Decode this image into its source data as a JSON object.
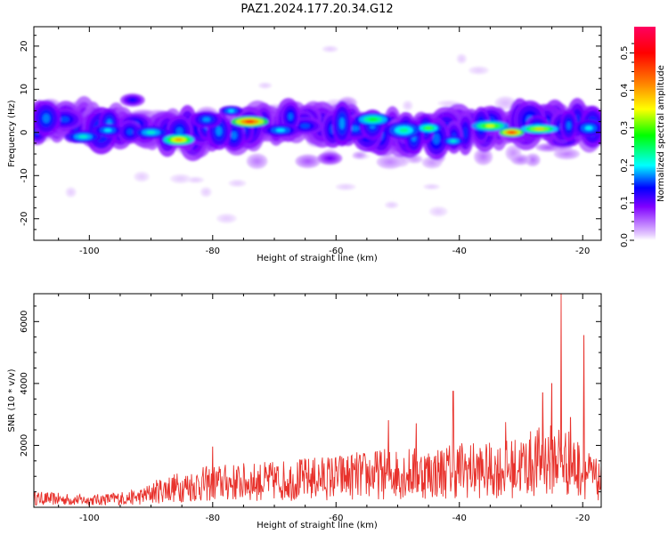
{
  "title": "PAZ1.2024.177.20.34.G12",
  "colors": {
    "axis": "#000000",
    "snr_line": "#e8322c"
  },
  "chart_data": [
    {
      "type": "heatmap",
      "xlabel": "Height of straight line (km)",
      "ylabel": "Frequency (Hz)",
      "xlim": [
        -109,
        -17
      ],
      "ylim": [
        -25,
        24.5
      ],
      "x_ticks": [
        -100,
        -80,
        -60,
        -40,
        -20
      ],
      "x_tick_labels": [
        "-100",
        "-80",
        "-60",
        "-40",
        "-20"
      ],
      "y_ticks": [
        -20,
        -10,
        0,
        10,
        20
      ],
      "y_tick_labels": [
        "-20",
        "-10",
        "0",
        "10",
        "20"
      ],
      "colorbar": {
        "label": "Normalized spectral amplitude",
        "range": [
          0.0,
          0.57
        ],
        "ticks": [
          0.0,
          0.1,
          0.2,
          0.3,
          0.4,
          0.5
        ],
        "tick_labels": [
          "0.0",
          "0.1",
          "0.2",
          "0.3",
          "0.4",
          "0.5"
        ],
        "colormap": [
          "#ffffff",
          "#e6ccff",
          "#8000ff",
          "#0000ff",
          "#00ffff",
          "#00ff00",
          "#ffff00",
          "#ff8000",
          "#ff0000",
          "#ff0060"
        ]
      },
      "blobs": [
        {
          "x": -104,
          "y": 3,
          "w": 3,
          "h": 2.5,
          "v": 0.16
        },
        {
          "x": -101,
          "y": -1,
          "w": 3,
          "h": 1.5,
          "v": 0.22
        },
        {
          "x": -97,
          "y": 0.5,
          "w": 2.5,
          "h": 1.5,
          "v": 0.2
        },
        {
          "x": -93,
          "y": 7.5,
          "w": 2,
          "h": 1.5,
          "v": 0.14
        },
        {
          "x": -90,
          "y": 0,
          "w": 3,
          "h": 1.5,
          "v": 0.22
        },
        {
          "x": -85.5,
          "y": -1.7,
          "w": 2.5,
          "h": 1.2,
          "v": 0.42
        },
        {
          "x": -81,
          "y": 3,
          "w": 2.5,
          "h": 2,
          "v": 0.18
        },
        {
          "x": -77,
          "y": 5,
          "w": 2,
          "h": 1.2,
          "v": 0.2
        },
        {
          "x": -74,
          "y": 2.5,
          "w": 3,
          "h": 1.2,
          "v": 0.5
        },
        {
          "x": -69,
          "y": 0.5,
          "w": 3,
          "h": 1.5,
          "v": 0.2
        },
        {
          "x": -65,
          "y": 1.5,
          "w": 3,
          "h": 2,
          "v": 0.16
        },
        {
          "x": -61,
          "y": -6,
          "w": 2,
          "h": 1.5,
          "v": 0.1
        },
        {
          "x": -54,
          "y": 3,
          "w": 3,
          "h": 1.5,
          "v": 0.28
        },
        {
          "x": -49,
          "y": 0.5,
          "w": 3,
          "h": 2,
          "v": 0.24
        },
        {
          "x": -45,
          "y": 1,
          "w": 2,
          "h": 1.2,
          "v": 0.3
        },
        {
          "x": -41,
          "y": -2,
          "w": 2,
          "h": 1.2,
          "v": 0.22
        },
        {
          "x": -35,
          "y": 1.5,
          "w": 3,
          "h": 1.2,
          "v": 0.35
        },
        {
          "x": -31.5,
          "y": 0,
          "w": 2,
          "h": 1,
          "v": 0.5
        },
        {
          "x": -27,
          "y": 0.8,
          "w": 3,
          "h": 1,
          "v": 0.38
        },
        {
          "x": -23,
          "y": -2,
          "w": 2.5,
          "h": 1.5,
          "v": 0.16
        },
        {
          "x": -19,
          "y": 1,
          "w": 2.5,
          "h": 2,
          "v": 0.2
        }
      ]
    },
    {
      "type": "line",
      "xlabel": "Height of straight line (km)",
      "ylabel": "SNR (10 * v/v)",
      "xlim": [
        -109,
        -17
      ],
      "ylim": [
        0,
        6900
      ],
      "x_ticks": [
        -100,
        -80,
        -60,
        -40,
        -20
      ],
      "x_tick_labels": [
        "-100",
        "-80",
        "-60",
        "-40",
        "-20"
      ],
      "y_ticks": [
        2000,
        4000,
        6000
      ],
      "y_tick_labels": [
        "2000",
        "4000",
        "6000"
      ],
      "envelope": {
        "x": [
          -109,
          -100,
          -92,
          -88,
          -80,
          -70,
          -60,
          -50,
          -44,
          -40,
          -36,
          -32,
          -28,
          -24,
          -20,
          -17
        ],
        "y": [
          450,
          350,
          500,
          900,
          1200,
          1300,
          1500,
          1700,
          1700,
          1900,
          1800,
          1900,
          2200,
          2500,
          1800,
          1200
        ]
      },
      "peaks": [
        {
          "x": -41,
          "y": 3750
        },
        {
          "x": -51.5,
          "y": 2800
        },
        {
          "x": -47,
          "y": 2700
        },
        {
          "x": -26.5,
          "y": 3700
        },
        {
          "x": -25,
          "y": 4000
        },
        {
          "x": -23.5,
          "y": 6900
        },
        {
          "x": -22,
          "y": 2900
        },
        {
          "x": -19.8,
          "y": 5550
        },
        {
          "x": -80,
          "y": 1950
        },
        {
          "x": -32.5,
          "y": 2750
        }
      ]
    }
  ]
}
